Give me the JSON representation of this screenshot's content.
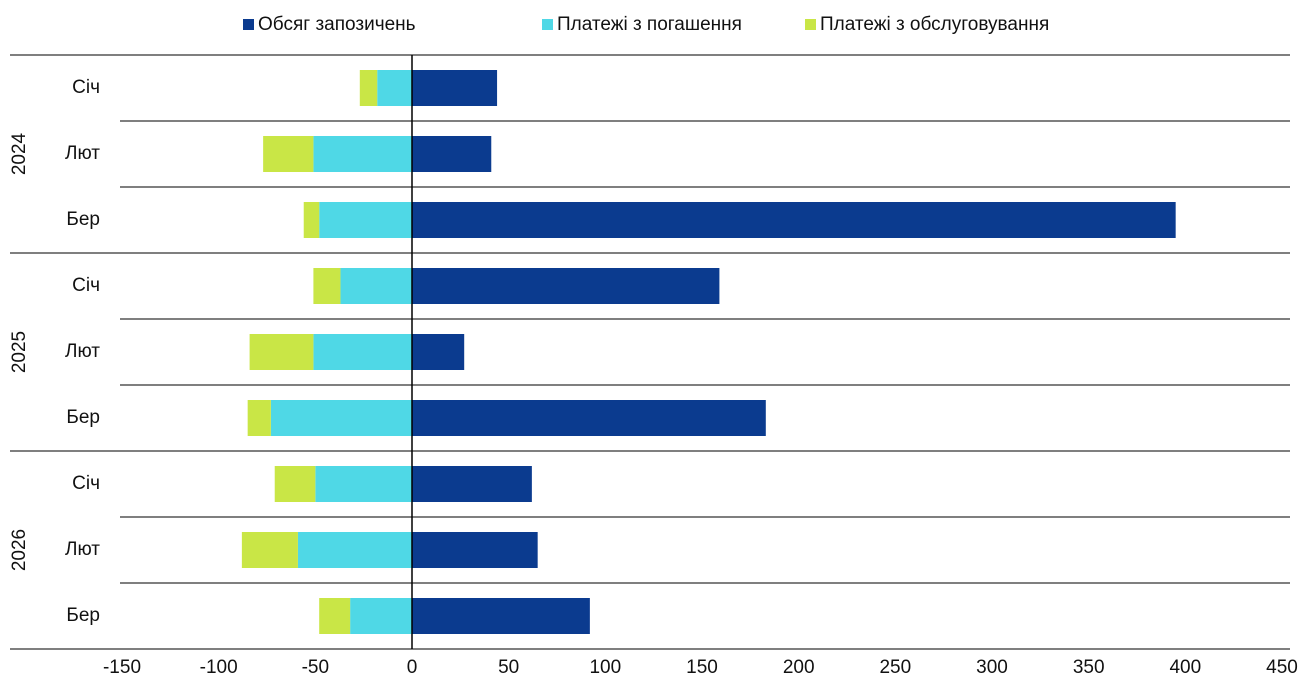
{
  "chart_data": {
    "type": "stacked_barh",
    "groups": [
      {
        "label": "2024",
        "categories": [
          "Січ",
          "Лют",
          "Бер"
        ]
      },
      {
        "label": "2025",
        "categories": [
          "Січ",
          "Лют",
          "Бер"
        ]
      },
      {
        "label": "2026",
        "categories": [
          "Січ",
          "Лют",
          "Бер"
        ]
      }
    ],
    "series": [
      {
        "name": "Обсяг запозичень",
        "color": "#0b3b8f",
        "values": [
          44,
          41,
          395,
          159,
          27,
          183,
          62,
          65,
          92
        ]
      },
      {
        "name": "Платежі з погашення",
        "color": "#4fd8e6",
        "values": [
          -18,
          -51,
          -48,
          -37,
          -51,
          -73,
          -50,
          -59,
          -32
        ]
      },
      {
        "name": "Платежі з обслуговування",
        "color": "#c9e646",
        "values": [
          -9,
          -26,
          -8,
          -14,
          -33,
          -12,
          -21,
          -29,
          -16
        ]
      }
    ],
    "xlim": [
      -150,
      450
    ],
    "xticks": [
      -150,
      -100,
      -50,
      0,
      50,
      100,
      150,
      200,
      250,
      300,
      350,
      400,
      450
    ],
    "legend": "top"
  }
}
